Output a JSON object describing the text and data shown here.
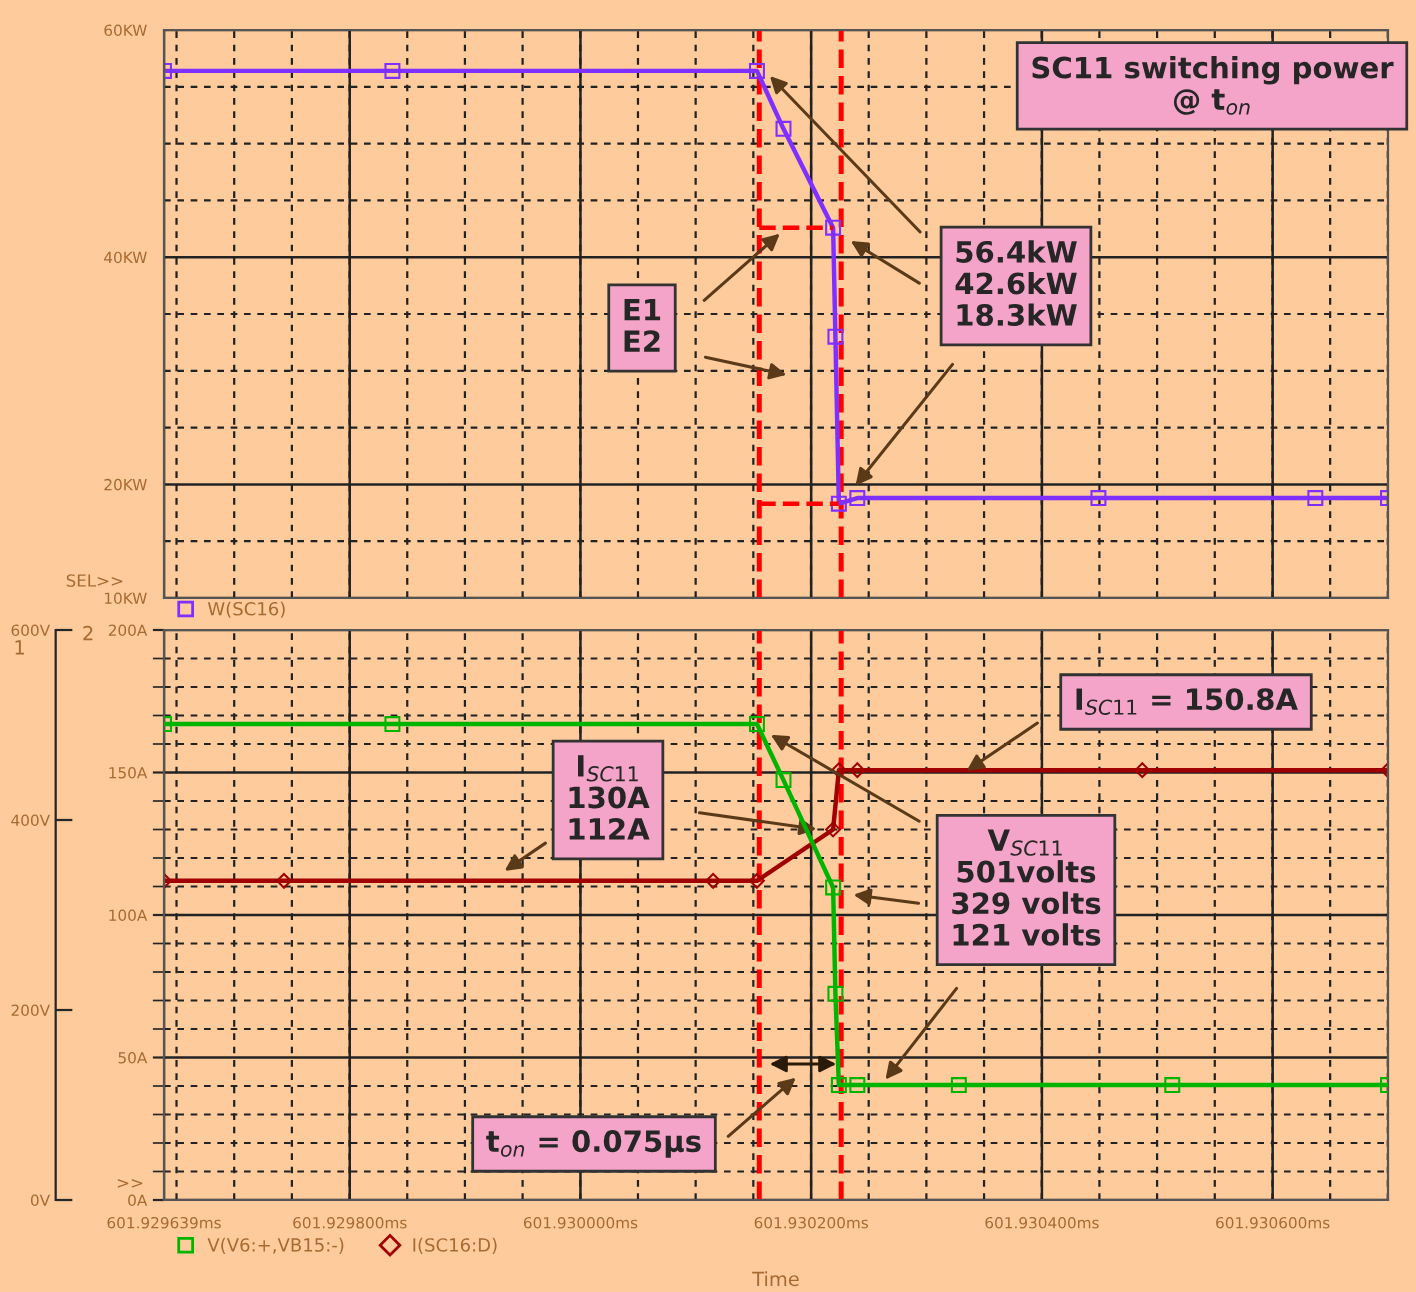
{
  "chart_data": [
    {
      "type": "line",
      "xlim": [
        601.929639,
        601.9307
      ],
      "xticks": [
        {
          "value": 601.929639,
          "label": null
        },
        {
          "value": 601.9298,
          "label": null
        },
        {
          "value": 601.93,
          "label": null
        },
        {
          "value": 601.9302,
          "label": null
        },
        {
          "value": 601.9304,
          "label": null
        },
        {
          "value": 601.9306,
          "label": null
        }
      ],
      "ylim": [
        10,
        60
      ],
      "yticks": [
        {
          "value": 10,
          "label": "10KW"
        },
        {
          "value": 20,
          "label": "20KW"
        },
        {
          "value": 40,
          "label": "40KW"
        },
        {
          "value": 60,
          "label": "60KW"
        }
      ],
      "tick_labels": "y",
      "grid": true,
      "legend": "bottom left",
      "series": [
        {
          "name": "W(SC16)",
          "color": "#7f2fff",
          "marker": "square",
          "x": [
            601.929639,
            601.929837,
            601.930153,
            601.930176,
            601.930219,
            601.930221,
            601.930224,
            601.93024,
            601.930449,
            601.930637,
            601.9307
          ],
          "values": [
            56.4,
            56.4,
            56.4,
            51.3,
            42.6,
            33,
            18.3,
            18.8,
            18.8,
            18.8,
            18.8
          ]
        },
        {
          "color": "#ff0000",
          "marker": "none",
          "line_style": "dashed",
          "x": [
            601.930155,
            601.930219
          ],
          "values": [
            42.6,
            42.6
          ]
        },
        {
          "color": "#ff0000",
          "marker": "none",
          "line_style": "dashed",
          "x": [
            601.930155,
            601.930224
          ],
          "values": [
            18.3,
            18.3
          ]
        }
      ],
      "ref_lines": [
        {
          "axis": "x",
          "value": 601.930155,
          "color": "#ff0000",
          "line_style": "dashed"
        },
        {
          "axis": "x",
          "value": 601.930226,
          "color": "#ff0000",
          "line_style": "dashed"
        }
      ],
      "annotations": [
        "SC11 switching power\n@ t$_{on}$",
        "E1\nE2",
        "56.4kW\n42.6kW\n18.3kW",
        "SEL>>"
      ]
    },
    {
      "type": "line",
      "xlabel": "Time",
      "ylabel": "2",
      "y2label": "1",
      "xlim": [
        601.929639,
        601.9307
      ],
      "xticks": [
        {
          "value": 601.929639,
          "label": "601.929639ms"
        },
        {
          "value": 601.9298,
          "label": "601.929800ms"
        },
        {
          "value": 601.93,
          "label": "601.930000ms"
        },
        {
          "value": 601.9302,
          "label": "601.930200ms"
        },
        {
          "value": 601.9304,
          "label": "601.930400ms"
        },
        {
          "value": 601.9306,
          "label": "601.930600ms"
        }
      ],
      "ylim": [
        0,
        200
      ],
      "yticks": [
        {
          "value": 0,
          "label": "0A"
        },
        {
          "value": 50,
          "label": "50A"
        },
        {
          "value": 100,
          "label": "100A"
        },
        {
          "value": 150,
          "label": "150A"
        },
        {
          "value": 200,
          "label": "200A"
        }
      ],
      "y2lim": [
        0,
        600
      ],
      "y2ticks": [
        {
          "value": 0,
          "label": "0V"
        },
        {
          "value": 200,
          "label": "200V"
        },
        {
          "value": 400,
          "label": "400V"
        },
        {
          "value": 600,
          "label": "600V"
        }
      ],
      "grid": true,
      "legend": "bottom left",
      "series": [
        {
          "name": "V(V6:+,VB15:-)",
          "axis": "y2",
          "color": "#00b400",
          "marker": "square",
          "x": [
            601.929639,
            601.929837,
            601.930153,
            601.930176,
            601.930219,
            601.930221,
            601.930224,
            601.93024,
            601.930328,
            601.930513,
            601.9307
          ],
          "values": [
            501,
            501,
            501,
            442,
            329,
            217,
            121,
            121,
            121,
            121,
            121
          ]
        },
        {
          "name": "I(SC16:D)",
          "color": "#a00000",
          "marker": "diamond",
          "x": [
            601.929639,
            601.929743,
            601.930115,
            601.930153,
            601.930219,
            601.930224,
            601.93024,
            601.930487,
            601.9307
          ],
          "values": [
            112,
            112,
            112,
            112,
            130,
            150.8,
            150.8,
            150.8,
            150.8
          ]
        }
      ],
      "ref_lines": [
        {
          "axis": "x",
          "value": 601.930155,
          "color": "#ff0000",
          "line_style": "dashed"
        },
        {
          "axis": "x",
          "value": 601.930226,
          "color": "#ff0000",
          "line_style": "dashed"
        }
      ],
      "annotations": [
        "I$_{SC11}$\n130A\n112A",
        "I$_{SC11}$ = 150.8A",
        "V$_{SC11}$\n501volts\n329 volts\n121 volts",
        "t$_{on}$ = 0.075µs",
        ">>"
      ]
    }
  ]
}
